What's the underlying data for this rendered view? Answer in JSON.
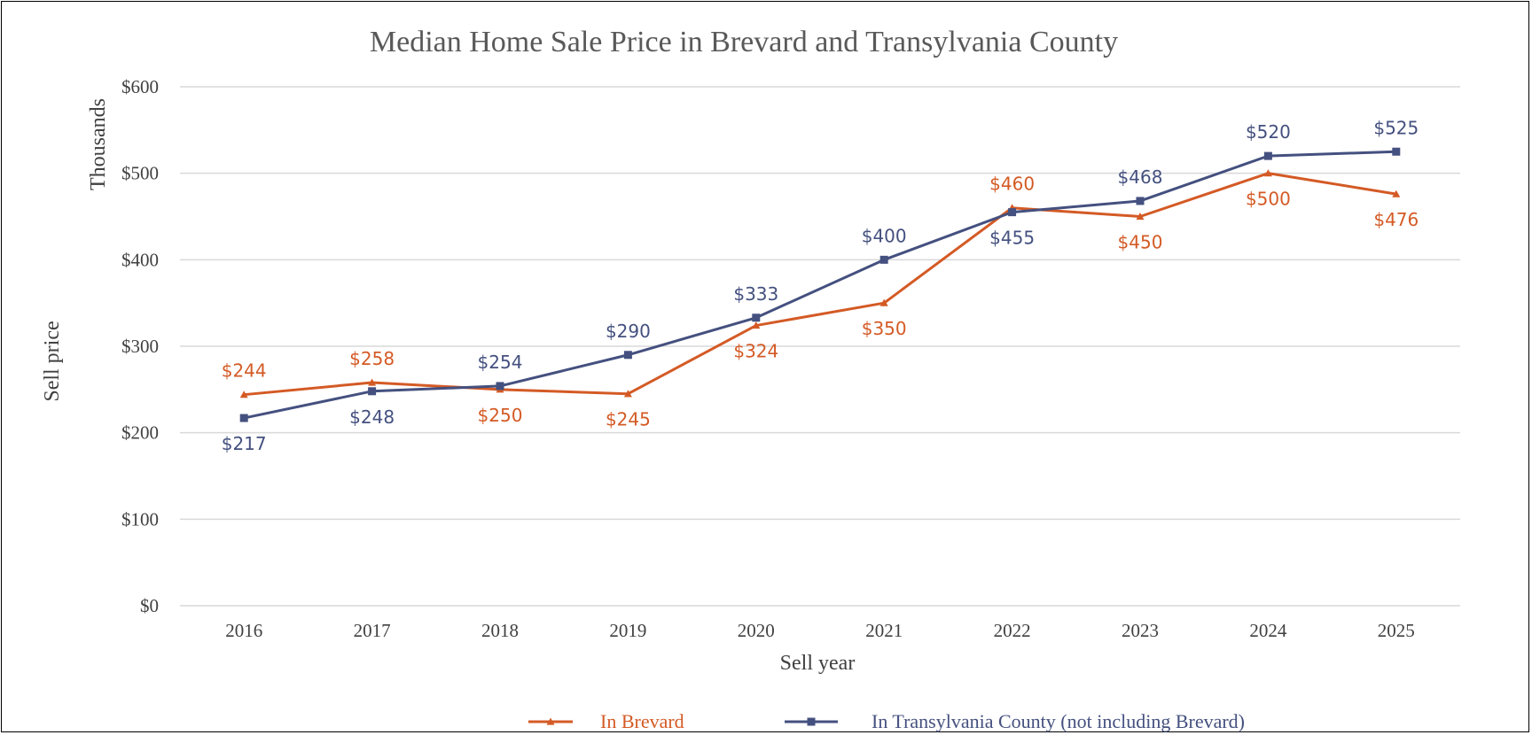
{
  "chart_data": {
    "type": "line",
    "title": "Median Home Sale Price in Brevard and Transylvania County",
    "xlabel": "Sell year",
    "ylabel": "Sell price",
    "y_units_label": "Thousands",
    "categories": [
      "2016",
      "2017",
      "2018",
      "2019",
      "2020",
      "2021",
      "2022",
      "2023",
      "2024",
      "2025"
    ],
    "ylim": [
      0,
      600
    ],
    "y_ticks": [
      0,
      100,
      200,
      300,
      400,
      500,
      600
    ],
    "y_tick_labels": [
      "$0",
      "$100",
      "$200",
      "$300",
      "$400",
      "$500",
      "$600"
    ],
    "grid": true,
    "legend_position": "bottom",
    "series": [
      {
        "name": "In Brevard",
        "color": "#D45A25",
        "marker": "triangle",
        "values": [
          244,
          258,
          250,
          245,
          324,
          350,
          460,
          450,
          500,
          476
        ],
        "labels": [
          "$244",
          "$258",
          "$250",
          "$245",
          "$324",
          "$350",
          "$460",
          "$450",
          "$500",
          "$476"
        ],
        "label_side": [
          "above",
          "above",
          "below",
          "below",
          "below",
          "below",
          "above",
          "below",
          "below",
          "below"
        ]
      },
      {
        "name": "In Transylvania County (not including Brevard)",
        "color": "#44507F",
        "marker": "square",
        "values": [
          217,
          248,
          254,
          290,
          333,
          400,
          455,
          468,
          520,
          525
        ],
        "labels": [
          "$217",
          "$248",
          "$254",
          "$290",
          "$333",
          "$400",
          "$455",
          "$468",
          "$520",
          "$525"
        ],
        "label_side": [
          "below",
          "below",
          "above",
          "above",
          "above",
          "above",
          "below",
          "above",
          "above",
          "above"
        ]
      }
    ]
  }
}
